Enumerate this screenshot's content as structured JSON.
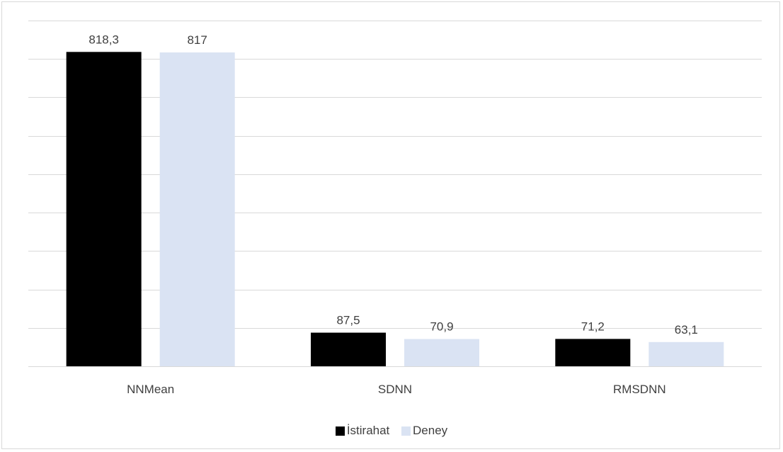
{
  "chart_data": {
    "type": "bar",
    "categories": [
      "NNMean",
      "SDNN",
      "RMSDNN"
    ],
    "series": [
      {
        "name": "İstirahat",
        "values": [
          818.3,
          87.5,
          71.2
        ],
        "labels": [
          "818,3",
          "87,5",
          "71,2"
        ],
        "color": "#000000"
      },
      {
        "name": "Deney",
        "values": [
          817,
          70.9,
          63.1
        ],
        "labels": [
          "817",
          "70,9",
          "63,1"
        ],
        "color": "#dae3f3"
      }
    ],
    "ylim": [
      0,
      900
    ],
    "y_gridline_step": 100,
    "y_axis_labels_shown": false,
    "grid": true,
    "legend_position": "bottom",
    "title": "",
    "xlabel": "",
    "ylabel": ""
  }
}
